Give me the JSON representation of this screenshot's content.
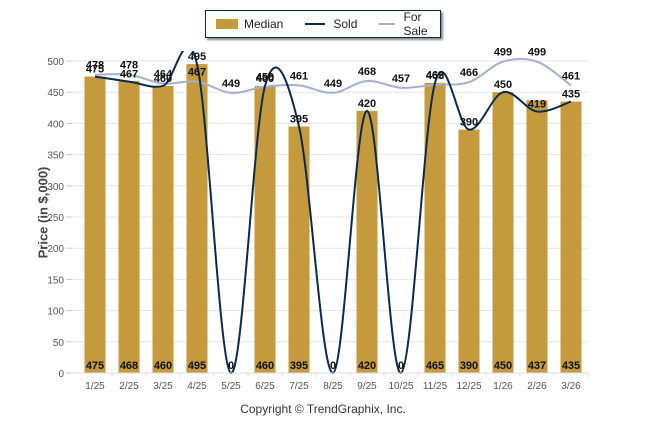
{
  "chart_data": {
    "type": "bar",
    "title": "",
    "xlabel": "",
    "ylabel": "Price (in $,000)",
    "ylim": [
      0,
      500
    ],
    "yticks": [
      0,
      50,
      100,
      150,
      200,
      250,
      300,
      350,
      400,
      450,
      500
    ],
    "grid": true,
    "legend_position": "top-center",
    "categories": [
      "1/25",
      "2/25",
      "3/25",
      "4/25",
      "5/25",
      "6/25",
      "7/25",
      "8/25",
      "9/25",
      "10/25",
      "11/25",
      "12/25",
      "1/26",
      "2/26",
      "3/26"
    ],
    "series": [
      {
        "name": "Median",
        "type": "bar",
        "color": "#C49A3C",
        "values": [
          475,
          468,
          460,
          495,
          0,
          460,
          395,
          0,
          420,
          0,
          465,
          390,
          450,
          437,
          435
        ]
      },
      {
        "name": "Sold",
        "type": "line",
        "color": "#0B2A4F",
        "values": [
          475,
          467,
          460,
          495,
          0,
          460,
          395,
          0,
          420,
          0,
          465,
          390,
          450,
          419,
          435
        ]
      },
      {
        "name": "For Sale",
        "type": "line",
        "color": "#A7B0CB",
        "values": [
          478,
          478,
          464,
          467,
          449,
          459,
          461,
          449,
          468,
          457,
          462,
          466,
          499,
          499,
          461
        ]
      }
    ]
  },
  "legend": {
    "median": "Median",
    "sold": "Sold",
    "for_sale": "For Sale"
  },
  "footer": {
    "copyright": "Copyright © TrendGraphix, Inc."
  }
}
